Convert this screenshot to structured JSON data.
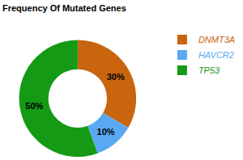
{
  "chart_data": {
    "type": "pie",
    "title": "Frequency Of Mutated Genes",
    "categories": [
      "DNMT3A",
      "HAVCR2",
      "TP53"
    ],
    "values": [
      30,
      10,
      50
    ],
    "value_labels": [
      "30%",
      "10%",
      "50%"
    ],
    "colors": [
      "#c8650e",
      "#5aa8f2",
      "#149a14"
    ],
    "data_labels": true,
    "legend": "upper right"
  }
}
